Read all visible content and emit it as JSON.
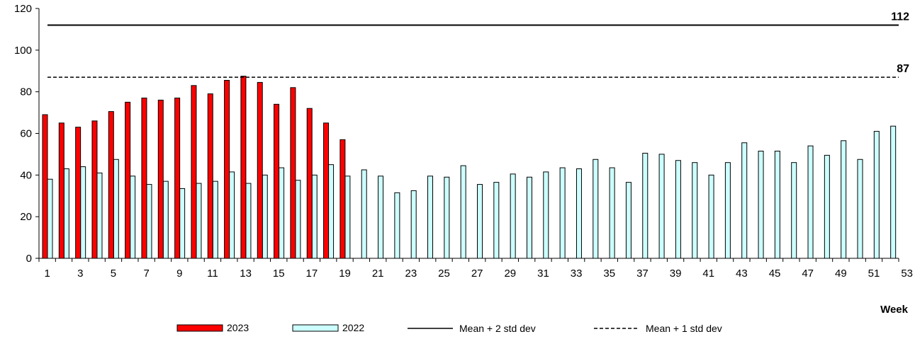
{
  "chart_data": {
    "type": "bar",
    "xlabel": "Week",
    "ylabel": "",
    "ylim": [
      0,
      120
    ],
    "yticks": [
      0,
      20,
      40,
      60,
      80,
      100,
      120
    ],
    "xlim": [
      1,
      53
    ],
    "xticks": [
      1,
      3,
      5,
      7,
      9,
      11,
      13,
      15,
      17,
      19,
      21,
      23,
      25,
      27,
      29,
      31,
      33,
      35,
      37,
      39,
      41,
      43,
      45,
      47,
      49,
      51,
      53
    ],
    "grid": false,
    "legend_position": "bottom",
    "series": [
      {
        "name": "2023",
        "color": "#ff0000",
        "x": [
          1,
          2,
          3,
          4,
          5,
          6,
          7,
          8,
          9,
          10,
          11,
          12,
          13,
          14,
          15,
          16,
          17,
          18,
          19
        ],
        "values": [
          69,
          65,
          63,
          66,
          70.5,
          75,
          77,
          76,
          77,
          83,
          79,
          85.5,
          87.5,
          84.5,
          74,
          82,
          72,
          65,
          57
        ]
      },
      {
        "name": "2022",
        "color": "#ccffff",
        "x": [
          1,
          2,
          3,
          4,
          5,
          6,
          7,
          8,
          9,
          10,
          11,
          12,
          13,
          14,
          15,
          16,
          17,
          18,
          19,
          20,
          21,
          22,
          23,
          24,
          25,
          26,
          27,
          28,
          29,
          30,
          31,
          32,
          33,
          34,
          35,
          36,
          37,
          38,
          39,
          40,
          41,
          42,
          43,
          44,
          45,
          46,
          47,
          48,
          49,
          50,
          51,
          52
        ],
        "values": [
          38,
          43,
          44,
          41,
          47.5,
          39.5,
          35.5,
          37,
          33.5,
          36,
          37,
          41.5,
          36,
          40,
          43.5,
          37.5,
          40,
          45,
          39.5,
          42.5,
          39.5,
          31.5,
          32.5,
          39.5,
          39,
          44.5,
          35.5,
          36.5,
          40.5,
          39,
          41.5,
          43.5,
          43,
          47.5,
          43.5,
          36.5,
          50.5,
          50,
          47,
          46,
          40,
          46,
          55.5,
          51.5,
          51.5,
          46,
          54,
          49.5,
          56.5,
          47.5,
          61,
          63.5
        ]
      }
    ],
    "reference_lines": [
      {
        "name": "Mean + 2 std dev",
        "value": 112,
        "label": "112",
        "style": "solid"
      },
      {
        "name": "Mean + 1 std dev",
        "value": 87,
        "label": "87",
        "style": "dashed"
      }
    ]
  }
}
